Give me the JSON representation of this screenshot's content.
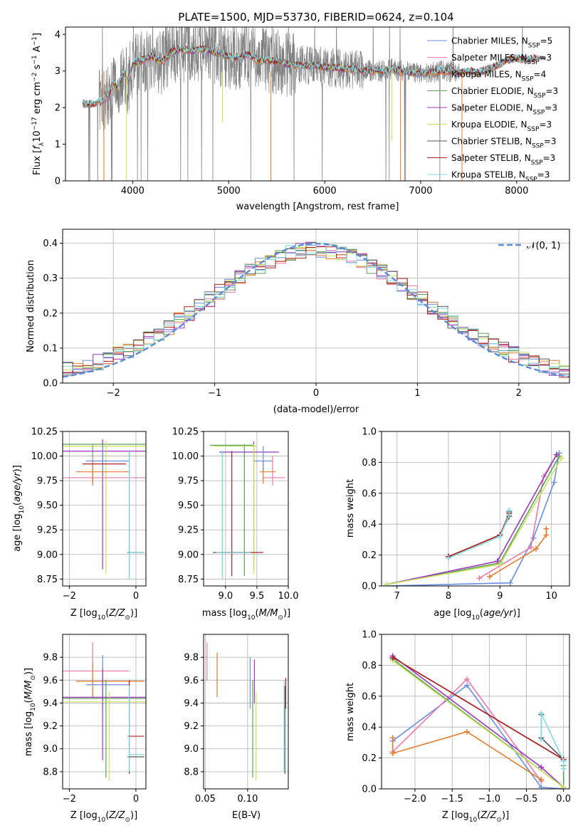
{
  "title": "PLATE=1500, MJD=53730, FIBERID=0624, z=0.104",
  "colors": {
    "chabrier_miles": "#6a8ee0",
    "salpeter_miles": "#e87aa8",
    "kroupa_miles": "#e07a2a",
    "chabrier_elodie": "#5aa05a",
    "salpeter_elodie": "#9a38b8",
    "kroupa_elodie": "#c8e060",
    "chabrier_stelib": "#555555",
    "salpeter_stelib": "#b02020",
    "kroupa_stelib": "#80d8e0",
    "data": "#808080"
  },
  "chart_data": [
    {
      "id": "spectrum",
      "type": "line",
      "xlabel": "wavelength [Angstrom, rest frame]",
      "ylabel": "Flux [f_λ10^-17 erg cm^-2 s^-1 A^-1]",
      "xlim": [
        3300,
        8550
      ],
      "ylim": [
        0,
        4.2
      ],
      "xticks": [
        4000,
        5000,
        6000,
        7000,
        8000
      ],
      "yticks": [
        0,
        1,
        2,
        3,
        4
      ],
      "grid": false,
      "legend": "upper right",
      "legend_entries": [
        "Chabrier MILES, N_SSP=5",
        "Salpeter MILES, N_SSP=3",
        "Kroupa MILES, N_SSP=4",
        "Chabrier ELODIE, N_SSP=3",
        "Salpeter ELODIE, N_SSP=3",
        "Kroupa ELODIE, N_SSP=3",
        "Chabrier STELIB, N_SSP=3",
        "Salpeter STELIB, N_SSP=3",
        "Kroupa STELIB, N_SSP=3"
      ],
      "model_continuum": {
        "x": [
          3480,
          3600,
          3700,
          3750,
          3800,
          3850,
          3900,
          3950,
          4000,
          4100,
          4200,
          4300,
          4400,
          4500,
          4600,
          4700,
          4800,
          4900,
          5000,
          5100,
          5200,
          5300,
          5400,
          5500,
          5600,
          5700,
          5800,
          5900,
          6000,
          6100,
          6200,
          6300,
          6400,
          6500,
          6600,
          6700,
          6800,
          6900,
          7000,
          7100,
          7200,
          7300,
          7400,
          7500,
          7600,
          7700,
          7800,
          7900,
          8000,
          8100,
          8200
        ],
        "y": [
          2.1,
          2.1,
          2.2,
          2.35,
          2.7,
          2.5,
          3.0,
          2.7,
          3.2,
          3.3,
          3.4,
          3.25,
          3.5,
          3.6,
          3.55,
          3.6,
          3.55,
          3.5,
          3.4,
          3.35,
          3.45,
          3.3,
          3.3,
          3.25,
          3.2,
          3.15,
          3.15,
          3.15,
          3.1,
          3.1,
          3.05,
          3.05,
          3.0,
          3.0,
          3.0,
          3.05,
          3.0,
          2.95,
          2.95,
          2.95,
          3.0,
          3.0,
          2.95,
          3.0,
          2.95,
          3.05,
          3.15,
          3.3,
          3.35,
          3.3,
          3.35
        ]
      }
    },
    {
      "id": "residuals",
      "type": "histogram",
      "xlabel": "(data-model)/error",
      "ylabel": "Normed distribution",
      "xlim": [
        -2.5,
        2.5
      ],
      "ylim": [
        0,
        0.44
      ],
      "xticks": [
        -2,
        -1,
        0,
        1,
        2
      ],
      "yticks": [
        0.0,
        0.1,
        0.2,
        0.3,
        0.4
      ],
      "grid": true,
      "legend": "upper right",
      "reference_label": "𝒩(0, 1)",
      "bin_width": 0.1,
      "bin_start": -2.5
    },
    {
      "id": "age_vs_Z",
      "type": "errorbar",
      "xlabel": "Z [log10(Z/Z⊙)]",
      "ylabel": "age  [log10(age/yr)]",
      "xlim": [
        -2.2,
        0.3
      ],
      "ylim": [
        8.68,
        10.25
      ],
      "xticks": [
        -2,
        0
      ],
      "yticks": [
        8.75,
        9.0,
        9.25,
        9.5,
        9.75,
        10.0,
        10.25
      ],
      "grid": true
    },
    {
      "id": "age_vs_mass",
      "type": "errorbar",
      "xlabel": "mass [log10(M/M⊙)]",
      "xlim": [
        8.65,
        10.0
      ],
      "ylim": [
        8.68,
        10.25
      ],
      "xticks": [
        9.0,
        9.5,
        10.0
      ],
      "yticks": [
        8.75,
        9.0,
        9.25,
        9.5,
        9.75,
        10.0,
        10.25
      ],
      "grid": true
    },
    {
      "id": "massweight_vs_age",
      "type": "line",
      "xlabel": "age  [log10(age/yr)]",
      "ylabel": "mass weight",
      "xlim": [
        6.7,
        10.35
      ],
      "ylim": [
        0,
        1.0
      ],
      "xticks": [
        7,
        8,
        9,
        10
      ],
      "yticks": [
        0.0,
        0.2,
        0.4,
        0.6,
        0.8,
        1.0
      ],
      "grid": true,
      "series": [
        {
          "color_key": "chabrier_miles",
          "x": [
            6.8,
            9.2,
            9.65,
            10.05,
            10.15
          ],
          "y": [
            0.0,
            0.02,
            0.31,
            0.67,
            0.86
          ]
        },
        {
          "color_key": "salpeter_miles",
          "x": [
            8.6,
            9.6,
            9.85,
            10.1
          ],
          "y": [
            0.05,
            0.25,
            0.71,
            0.85
          ]
        },
        {
          "color_key": "kroupa_miles",
          "x": [
            8.8,
            9.7,
            9.9,
            9.9
          ],
          "y": [
            0.06,
            0.24,
            0.33,
            0.37
          ]
        },
        {
          "color_key": "chabrier_elodie",
          "x": [
            6.8,
            9.0,
            10.15
          ],
          "y": [
            0.01,
            0.15,
            0.84
          ]
        },
        {
          "color_key": "salpeter_elodie",
          "x": [
            6.8,
            8.95,
            10.1
          ],
          "y": [
            0.01,
            0.16,
            0.85
          ]
        },
        {
          "color_key": "kroupa_elodie",
          "x": [
            6.8,
            9.0,
            10.2
          ],
          "y": [
            0.01,
            0.14,
            0.83
          ]
        },
        {
          "color_key": "chabrier_stelib",
          "x": [
            8.0,
            9.0,
            9.18,
            9.18
          ],
          "y": [
            0.19,
            0.33,
            0.45,
            0.48
          ]
        },
        {
          "color_key": "salpeter_stelib",
          "x": [
            8.0,
            9.0,
            9.18
          ],
          "y": [
            0.19,
            0.33,
            0.47
          ]
        },
        {
          "color_key": "kroupa_stelib",
          "x": [
            8.0,
            9.0,
            9.18,
            9.18
          ],
          "y": [
            0.18,
            0.32,
            0.46,
            0.49
          ]
        }
      ]
    },
    {
      "id": "mass_vs_Z",
      "type": "errorbar",
      "xlabel": "Z [log10(Z/Z⊙)]",
      "ylabel": "mass [log10(M/M⊙)]",
      "xlim": [
        -2.2,
        0.3
      ],
      "ylim": [
        8.65,
        10.0
      ],
      "xticks": [
        -2,
        0
      ],
      "yticks": [
        8.8,
        9.0,
        9.2,
        9.4,
        9.6,
        9.8
      ],
      "grid": true
    },
    {
      "id": "mass_vs_ebv",
      "type": "errorbar",
      "xlabel": "E(B-V)",
      "xlim": [
        0.048,
        0.148
      ],
      "ylim": [
        8.65,
        10.0
      ],
      "xticks": [
        0.05,
        0.1
      ],
      "yticks": [
        8.8,
        9.0,
        9.2,
        9.4,
        9.6,
        9.8
      ],
      "grid": true
    },
    {
      "id": "massweight_vs_Z",
      "type": "line",
      "xlabel": "Z [log10(Z/Z⊙)]",
      "ylabel": "mass weight",
      "xlim": [
        -2.45,
        0.08
      ],
      "ylim": [
        0,
        1.0
      ],
      "xticks": [
        -2.0,
        -1.5,
        -1.0,
        -0.5,
        0.0
      ],
      "yticks": [
        0.0,
        0.2,
        0.4,
        0.6,
        0.8,
        1.0
      ],
      "grid": true,
      "series": [
        {
          "color_key": "chabrier_miles",
          "x": [
            -2.3,
            -1.3,
            -0.3,
            0.0
          ],
          "y": [
            0.31,
            0.67,
            0.01,
            0.0
          ]
        },
        {
          "color_key": "salpeter_miles",
          "x": [
            -2.3,
            -1.3,
            -0.3
          ],
          "y": [
            0.24,
            0.71,
            0.05
          ]
        },
        {
          "color_key": "kroupa_miles",
          "x": [
            -2.3,
            -2.3,
            -1.3,
            -0.3
          ],
          "y": [
            0.33,
            0.23,
            0.37,
            0.06
          ]
        },
        {
          "color_key": "chabrier_elodie",
          "x": [
            -2.3,
            0.0,
            0.0
          ],
          "y": [
            0.84,
            0.01,
            0.15
          ]
        },
        {
          "color_key": "salpeter_elodie",
          "x": [
            -2.3,
            -0.3,
            0.0
          ],
          "y": [
            0.86,
            0.14,
            0.01
          ]
        },
        {
          "color_key": "kroupa_elodie",
          "x": [
            -2.3,
            0.0
          ],
          "y": [
            0.83,
            0.01
          ]
        },
        {
          "color_key": "chabrier_stelib",
          "x": [
            -2.3,
            0.0,
            -0.3,
            -0.3
          ],
          "y": [
            0.85,
            0.19,
            0.33,
            0.48
          ]
        },
        {
          "color_key": "salpeter_stelib",
          "x": [
            -2.3,
            0.0
          ],
          "y": [
            0.85,
            0.19
          ]
        },
        {
          "color_key": "kroupa_stelib",
          "x": [
            -0.3,
            -0.3,
            0.0,
            0.0
          ],
          "y": [
            0.32,
            0.49,
            0.18,
            0.13
          ]
        }
      ]
    }
  ]
}
